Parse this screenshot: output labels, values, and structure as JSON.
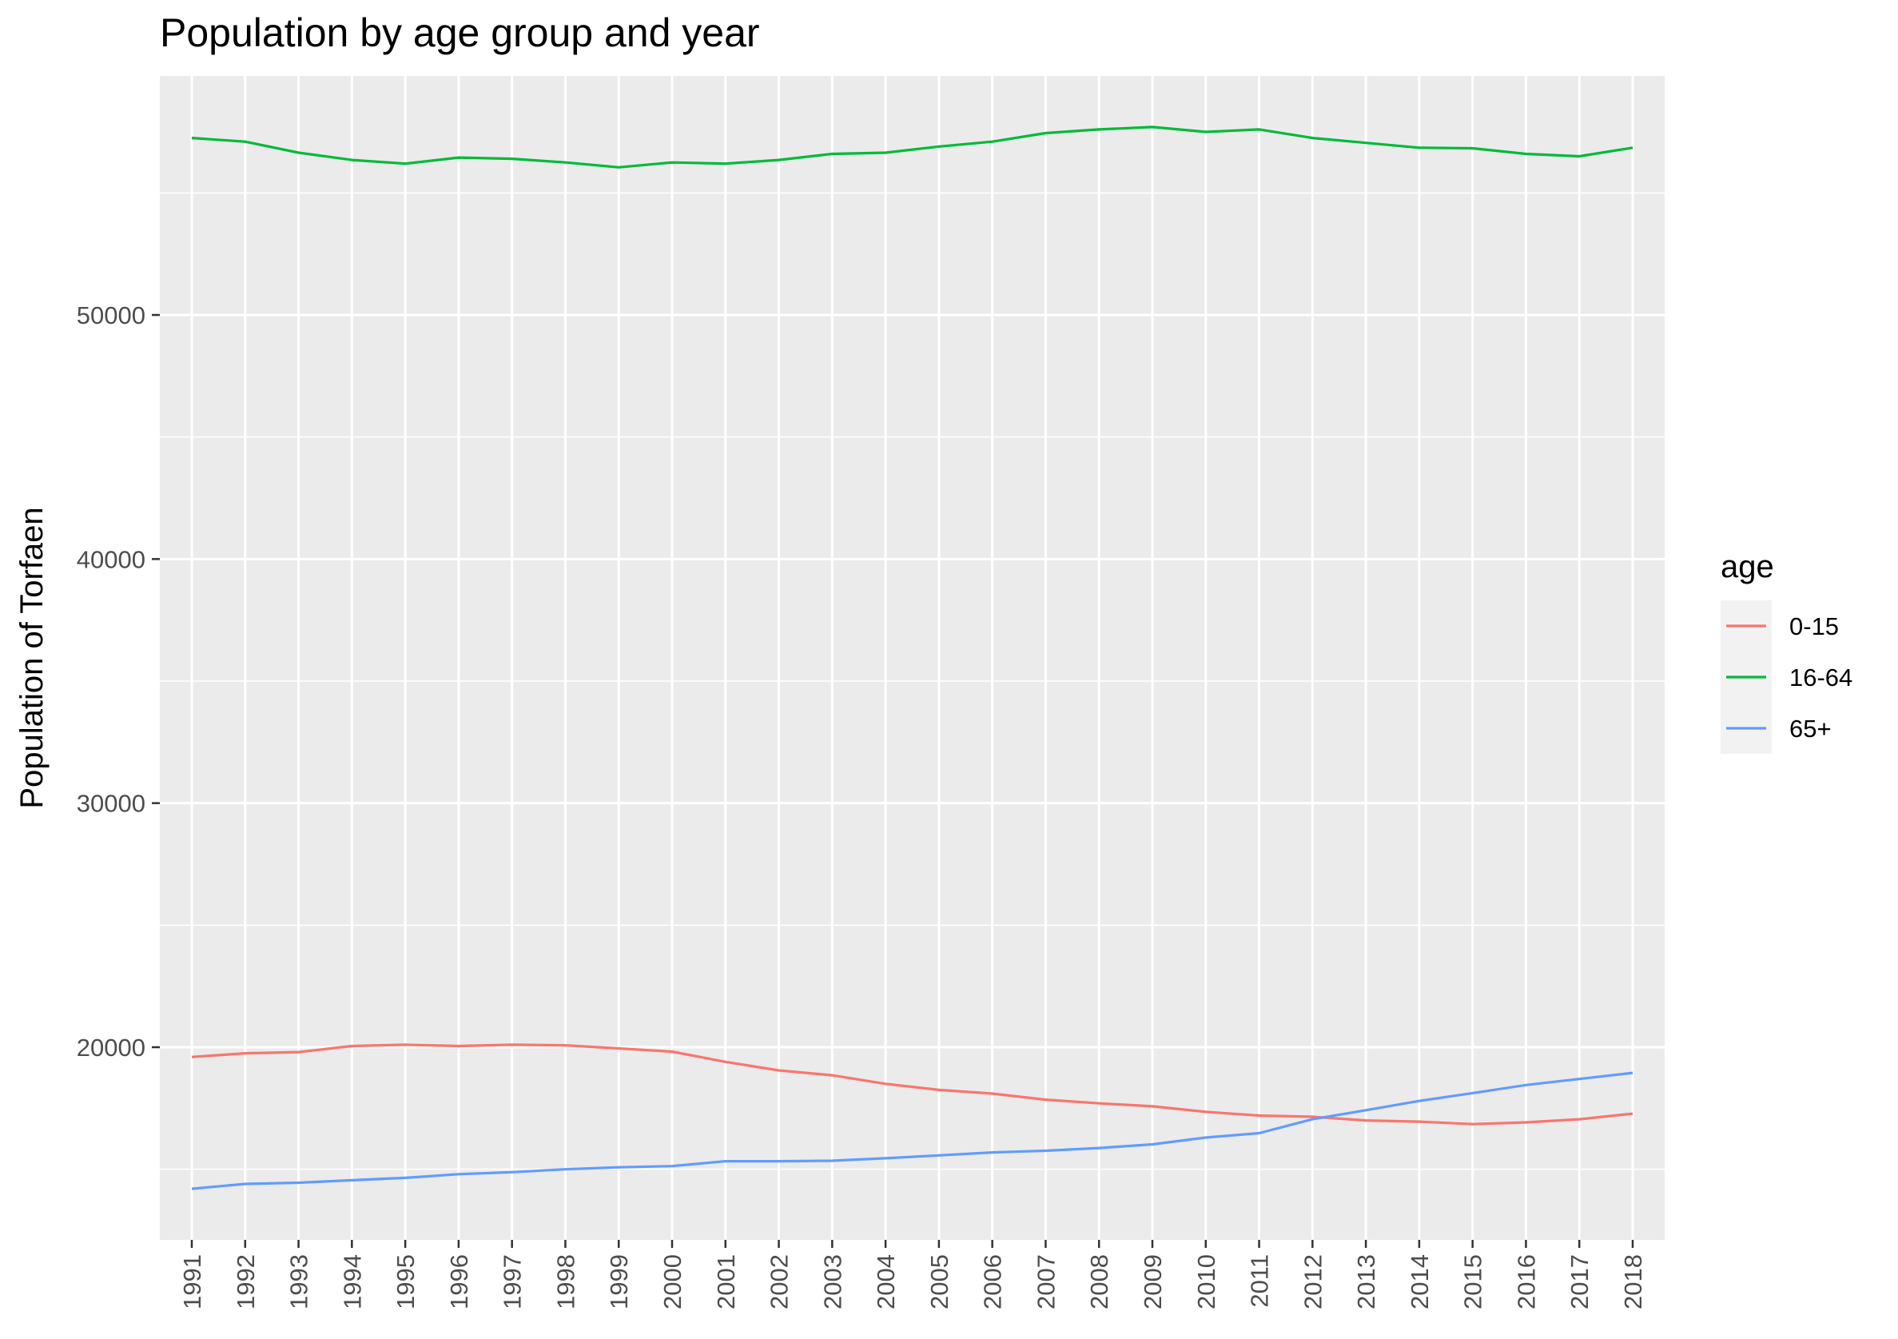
{
  "chart_data": {
    "type": "line",
    "title": "Population by age group and year",
    "xlabel": "",
    "ylabel": "Population of Torfaen",
    "x": [
      "1991",
      "1992",
      "1993",
      "1994",
      "1995",
      "1996",
      "1997",
      "1998",
      "1999",
      "2000",
      "2001",
      "2002",
      "2003",
      "2004",
      "2005",
      "2006",
      "2007",
      "2008",
      "2009",
      "2010",
      "2011",
      "2012",
      "2013",
      "2014",
      "2015",
      "2016",
      "2017",
      "2018"
    ],
    "y_ticks": [
      "20000",
      "30000",
      "40000",
      "50000"
    ],
    "ylim": [
      12000,
      60000
    ],
    "grid": true,
    "legend": {
      "title": "age",
      "placement": "right"
    },
    "series": [
      {
        "name": "0-15",
        "color": "#F8766D",
        "values": [
          19600,
          19750,
          19800,
          20050,
          20100,
          20050,
          20100,
          20080,
          19950,
          19820,
          19400,
          19050,
          18850,
          18500,
          18250,
          18100,
          17850,
          17700,
          17580,
          17350,
          17200,
          17150,
          17000,
          16950,
          16850,
          16920,
          17050,
          17280
        ]
      },
      {
        "name": "16-64",
        "color": "#00BA38",
        "values": [
          57250,
          57100,
          56650,
          56350,
          56200,
          56450,
          56400,
          56250,
          56050,
          56250,
          56200,
          56350,
          56600,
          56650,
          56900,
          57100,
          57450,
          57600,
          57700,
          57500,
          57600,
          57250,
          57050,
          56850,
          56830,
          56600,
          56500,
          56850
        ]
      },
      {
        "name": "65+",
        "color": "#619CFF",
        "values": [
          14200,
          14400,
          14450,
          14550,
          14650,
          14800,
          14880,
          15000,
          15080,
          15130,
          15330,
          15330,
          15350,
          15450,
          15570,
          15690,
          15760,
          15870,
          16020,
          16300,
          16480,
          17050,
          17420,
          17800,
          18120,
          18450,
          18700,
          18950
        ]
      }
    ]
  }
}
